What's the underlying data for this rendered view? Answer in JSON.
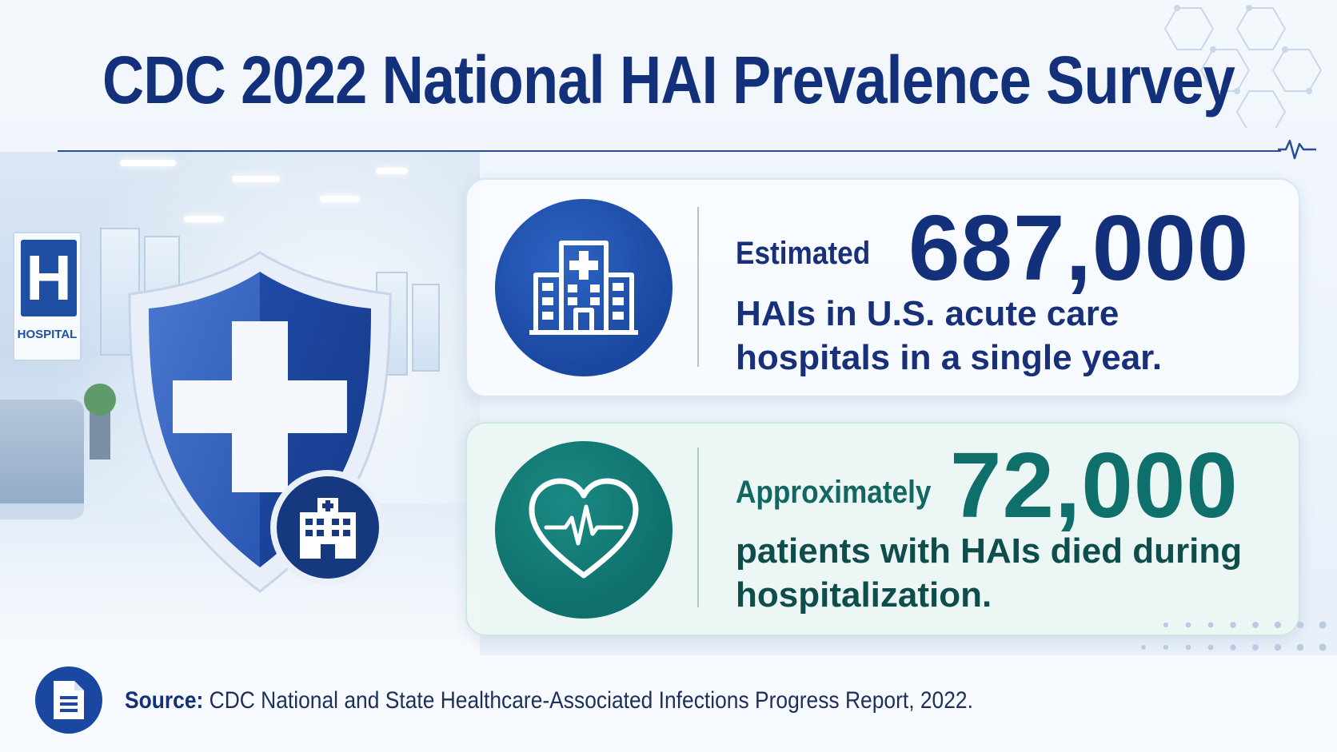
{
  "title": "CDC 2022 National HAI Prevalence Survey",
  "background": {
    "sign_letter": "H",
    "sign_label": "HOSPITAL"
  },
  "stats": [
    {
      "icon": "hospital-building-icon",
      "lead": "Estimated",
      "value": "687,000",
      "description": "HAIs in U.S. acute care hospitals in a single year.",
      "color": "#1a47a0"
    },
    {
      "icon": "heart-pulse-icon",
      "lead": "Approximately",
      "value": "72,000",
      "description": "patients with HAIs died during hospitalization.",
      "color": "#0f6f6b"
    }
  ],
  "footer": {
    "icon": "document-icon",
    "source_label": "Source:",
    "source_text": "CDC National and State Healthcare-Associated Infections Progress Report, 2022."
  },
  "colors": {
    "primary_blue": "#13307a",
    "accent_blue": "#1a47a0",
    "teal": "#0f6f6b"
  }
}
